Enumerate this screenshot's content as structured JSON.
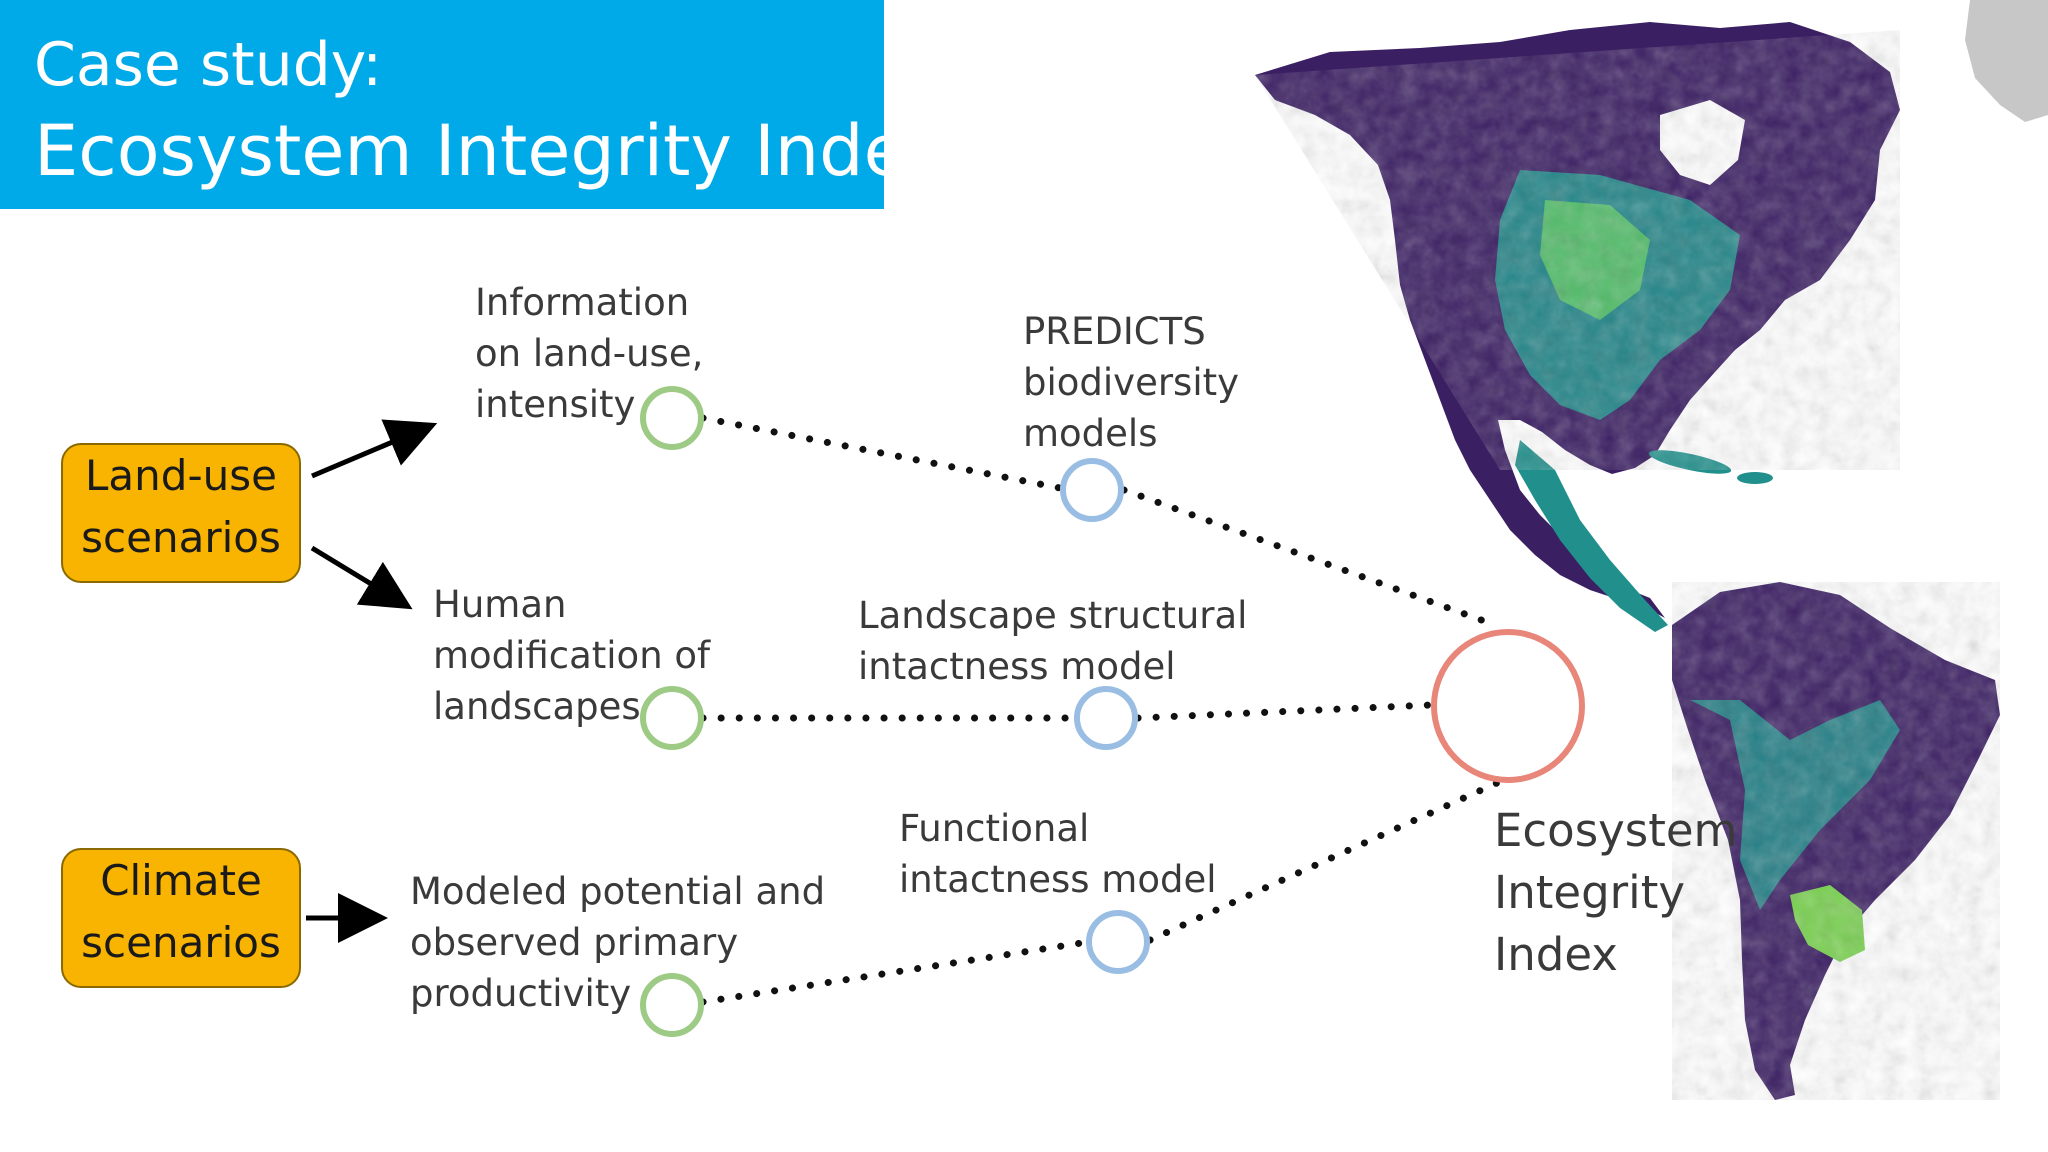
{
  "title": {
    "line1": "Case study:",
    "line2": "Ecosystem Integrity Index"
  },
  "scenarios": {
    "land_use": {
      "line1": "Land-use",
      "line2": "scenarios"
    },
    "climate": {
      "line1": "Climate",
      "line2": "scenarios"
    }
  },
  "inputs": {
    "land_use_info": {
      "line1": "Information",
      "line2": "on land-use,",
      "line3": "intensity"
    },
    "human_modification": {
      "line1": "Human",
      "line2": "modification of",
      "line3": "landscapes"
    },
    "productivity": {
      "line1": "Modeled potential and",
      "line2": "observed primary",
      "line3": "productivity"
    }
  },
  "models": {
    "predicts": {
      "line1": "PREDICTS",
      "line2": "biodiversity",
      "line3": "models"
    },
    "structural": {
      "line1": "Landscape structural",
      "line2": "intactness model"
    },
    "functional": {
      "line1": "Functional",
      "line2": "intactness model"
    }
  },
  "output": {
    "line1": "Ecosystem",
    "line2": "Integrity",
    "line3": "Index"
  },
  "colors": {
    "banner": "#00A9E8",
    "scenario_box": "#F8B400",
    "input_circle": "#9DCB85",
    "model_circle": "#9ABDE3",
    "output_circle": "#E8867A",
    "map_dark": "#3B1F63",
    "map_mid": "#21908C",
    "map_light": "#7AD151"
  }
}
